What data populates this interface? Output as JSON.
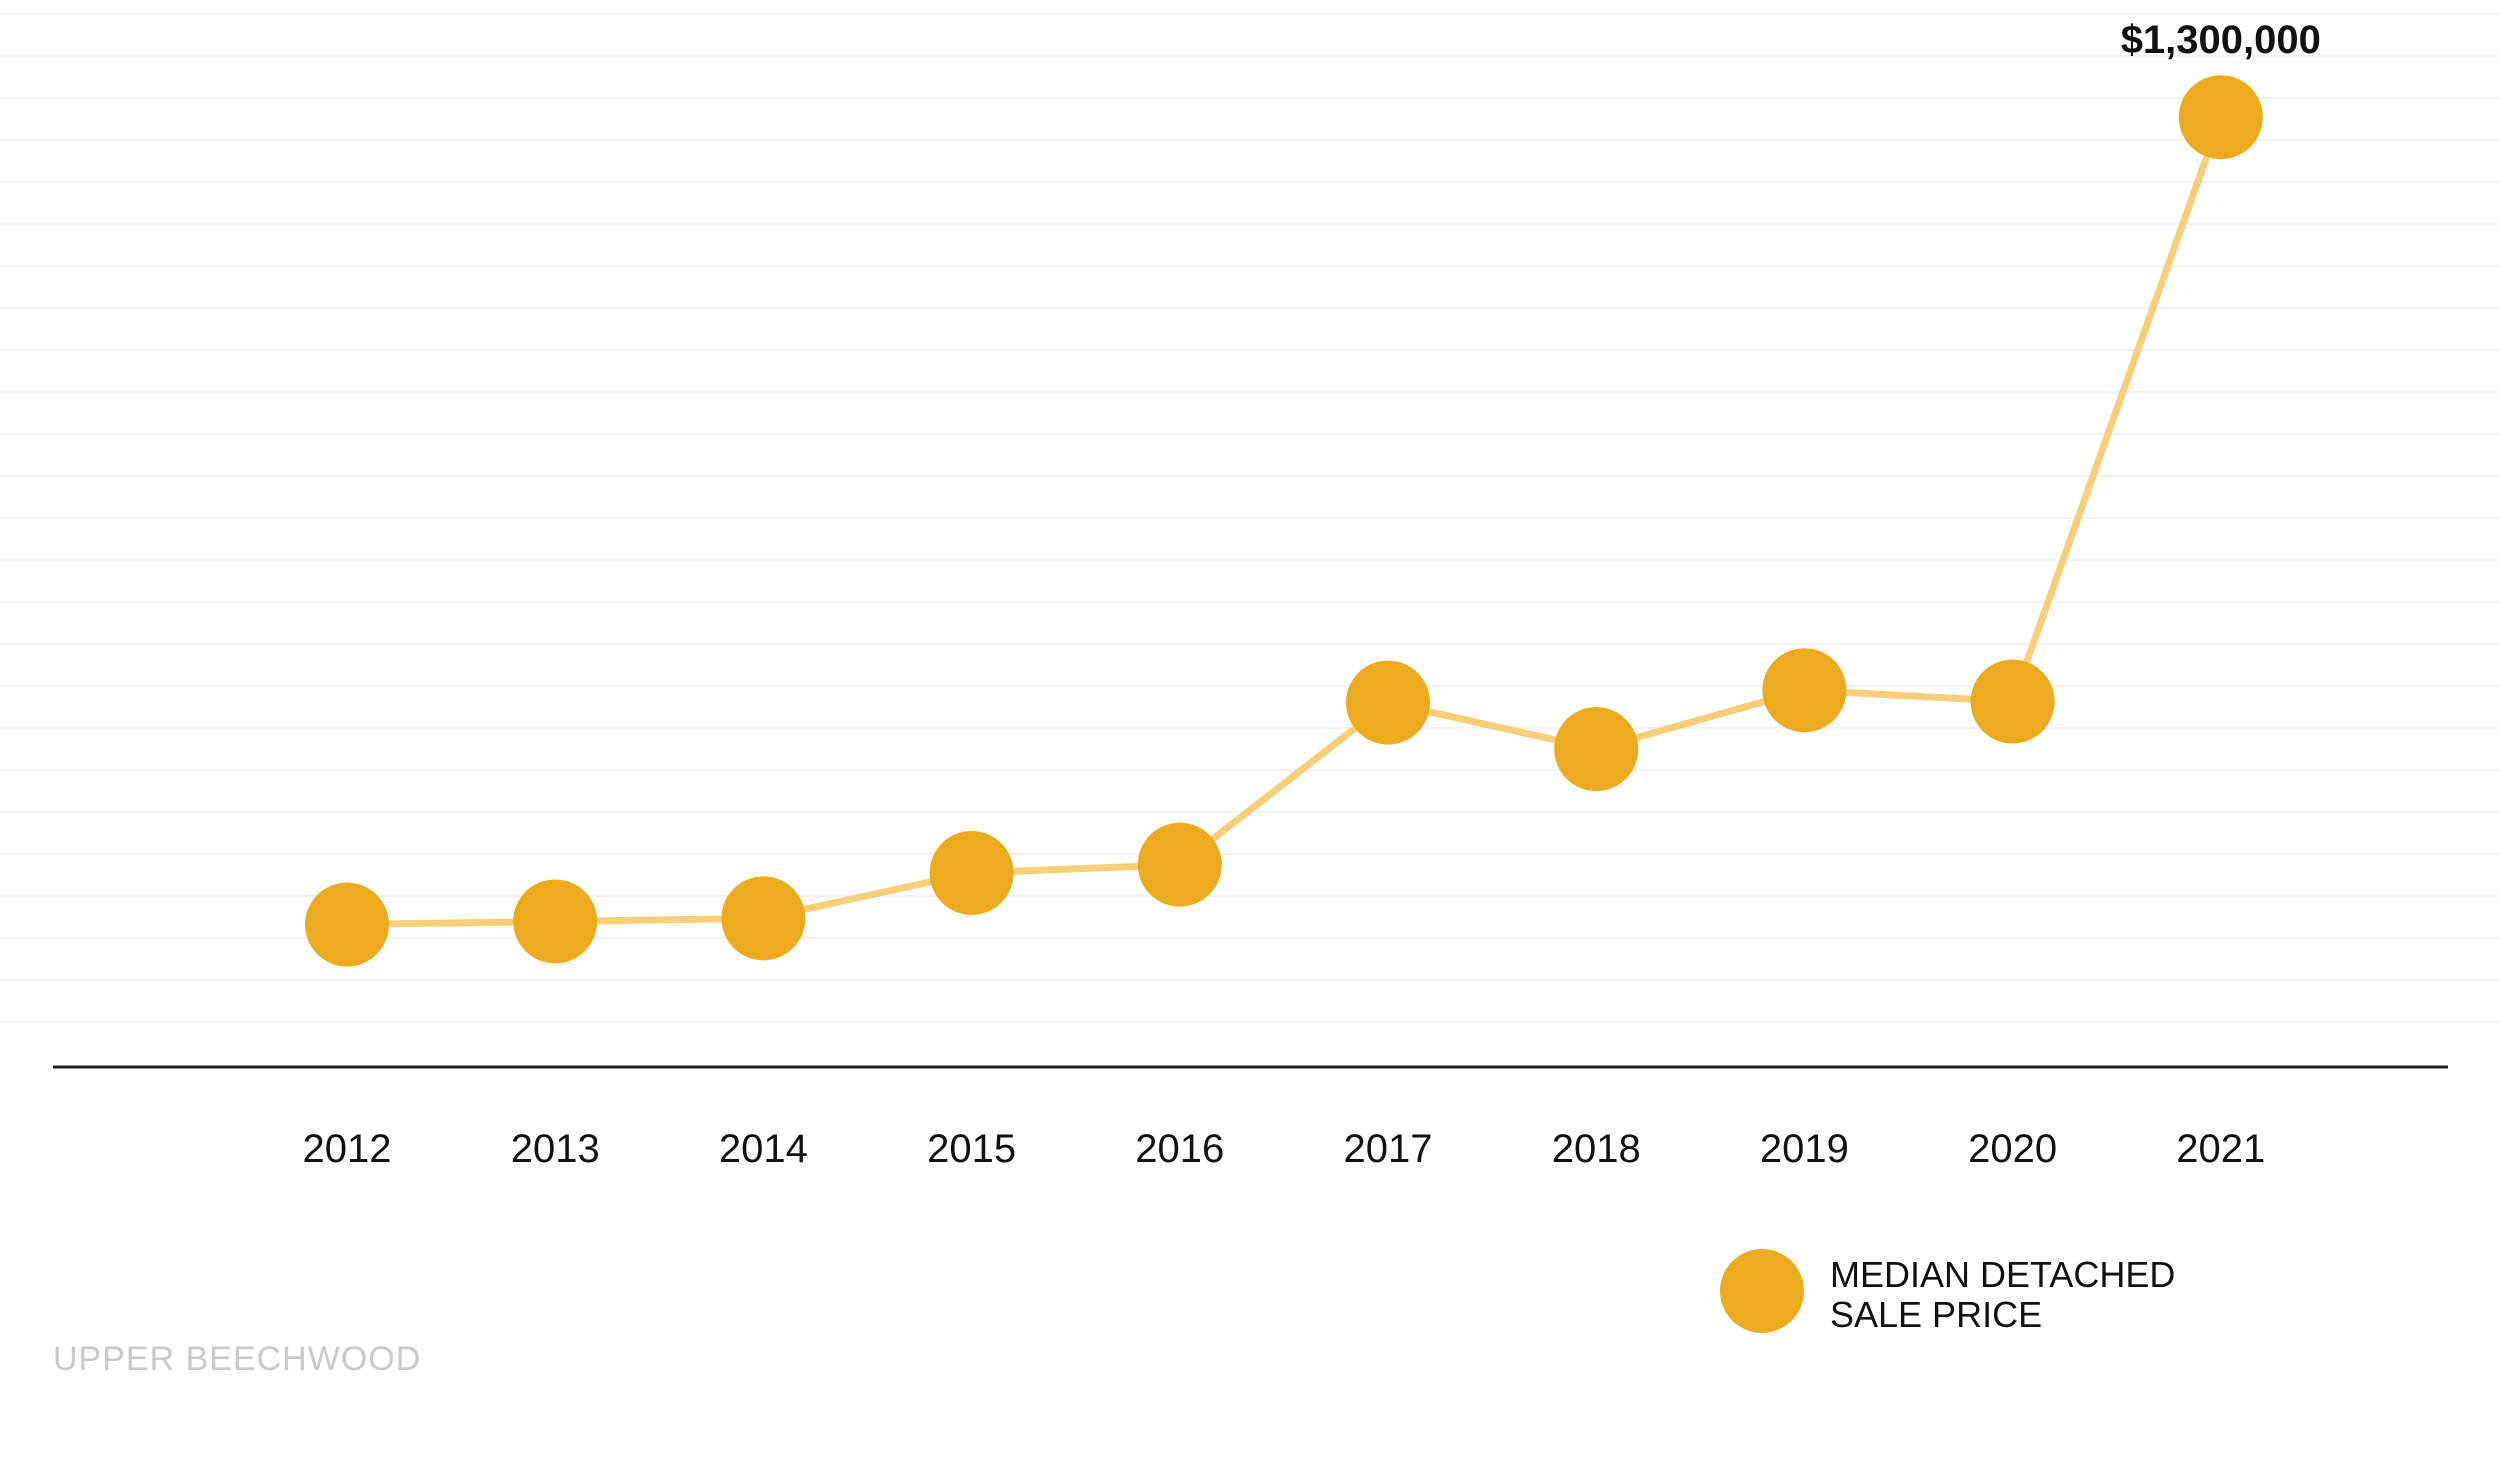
{
  "chart_data": {
    "type": "line",
    "categories": [
      "2012",
      "2013",
      "2014",
      "2015",
      "2016",
      "2017",
      "2018",
      "2019",
      "2020",
      "2021"
    ],
    "series": [
      {
        "name": "MEDIAN DETACHED SALE PRICE",
        "values": [
          518000,
          521000,
          524000,
          568000,
          576000,
          733000,
          688000,
          745000,
          734000,
          1300000
        ],
        "data_labels": [
          "",
          "",
          "",
          "",
          "",
          "",
          "",
          "",
          "",
          "$1,300,000"
        ]
      }
    ],
    "ylim": [
      380000,
      1400000
    ],
    "grid": true,
    "legend": {
      "placement": "bottom-right",
      "lines": [
        "MEDIAN DETACHED",
        "SALE PRICE"
      ]
    },
    "colors": {
      "marker": "#ECAB1F",
      "line": "#F8CF78",
      "axis": "#222222",
      "grid": "#F1F1F1"
    }
  },
  "footer": {
    "source_label": "UPPER BEECHWOOD"
  }
}
